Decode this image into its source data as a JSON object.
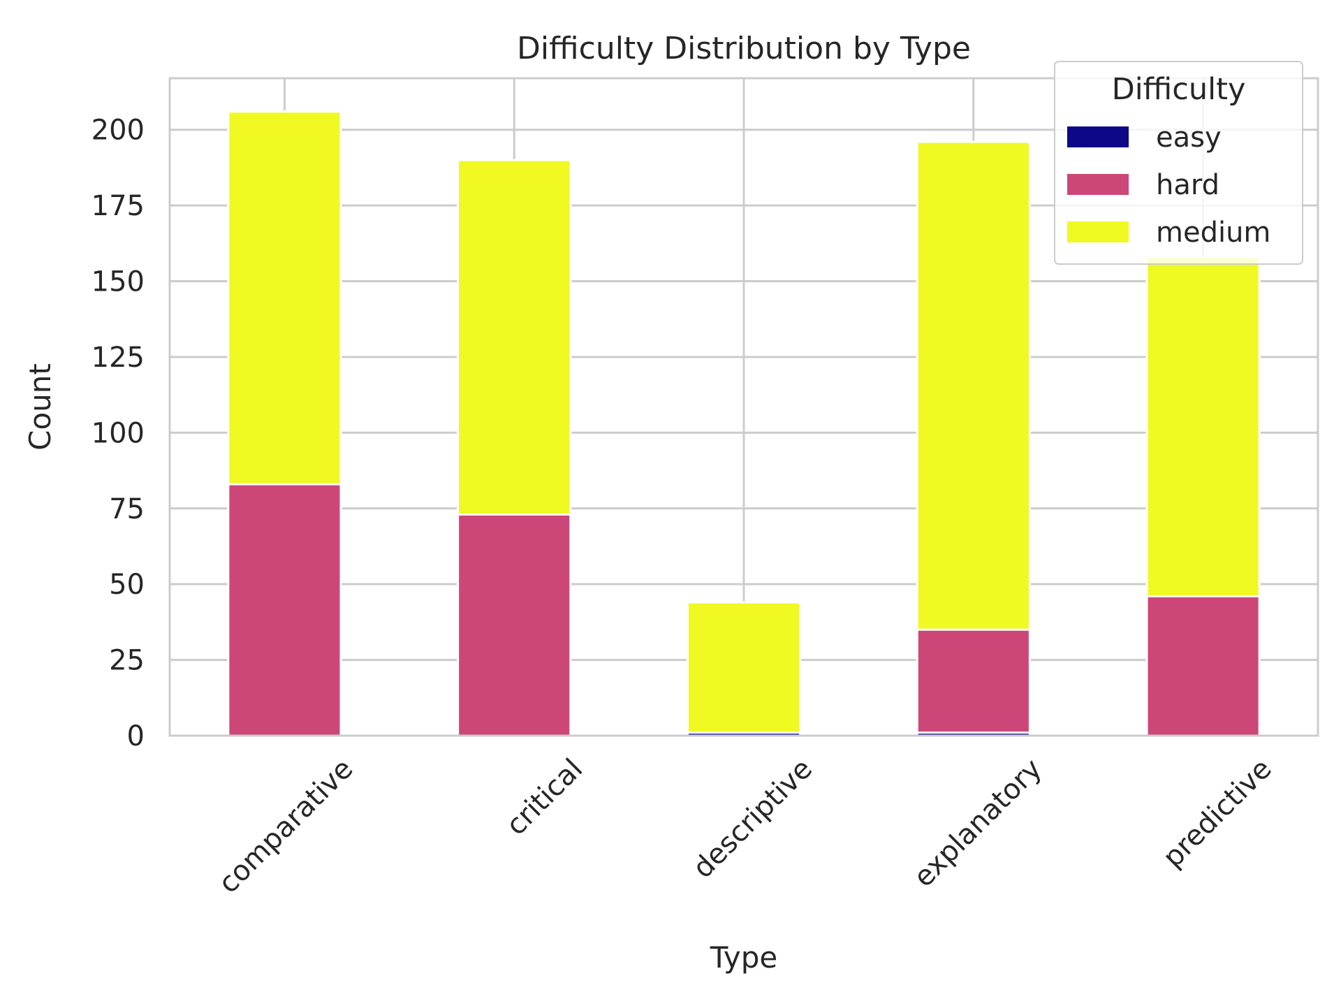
{
  "chart_data": {
    "type": "bar",
    "stacked": true,
    "title": "Difficulty Distribution by Type",
    "xlabel": "Type",
    "ylabel": "Count",
    "categories": [
      "comparative",
      "critical",
      "descriptive",
      "explanatory",
      "predictive"
    ],
    "series": [
      {
        "name": "easy",
        "color": "#0d0887",
        "values": [
          0,
          0,
          1,
          1,
          0
        ]
      },
      {
        "name": "hard",
        "color": "#cc4778",
        "values": [
          83,
          73,
          0,
          34,
          46
        ]
      },
      {
        "name": "medium",
        "color": "#f0f921",
        "values": [
          123,
          117,
          43,
          161,
          112
        ]
      }
    ],
    "ylim": [
      0,
      217
    ],
    "yticks": [
      0,
      25,
      50,
      75,
      100,
      125,
      150,
      175,
      200
    ],
    "grid": true,
    "legend": {
      "title": "Difficulty",
      "placement": "top-right"
    }
  }
}
